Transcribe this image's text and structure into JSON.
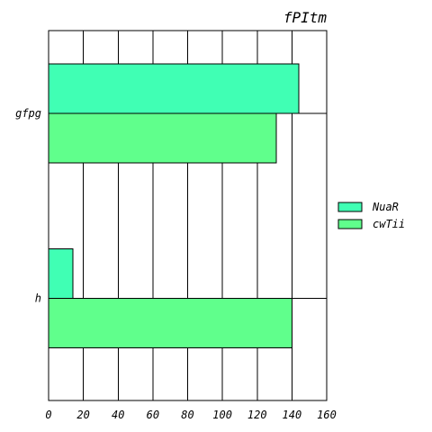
{
  "chart_data": {
    "type": "bar",
    "orientation": "horizontal",
    "title": "fPItm",
    "xlabel": "",
    "ylabel": "",
    "categories": [
      "gfpg",
      "h"
    ],
    "series": [
      {
        "name": "NuaR",
        "values": [
          144,
          14
        ],
        "color": "#40ffb4"
      },
      {
        "name": "cwTii",
        "values": [
          131,
          140
        ],
        "color": "#60ff8c"
      }
    ],
    "xlim": [
      0,
      160
    ],
    "xticks": [
      0,
      20,
      40,
      60,
      80,
      100,
      120,
      140,
      160
    ],
    "grid": true,
    "legend_position": "right"
  }
}
